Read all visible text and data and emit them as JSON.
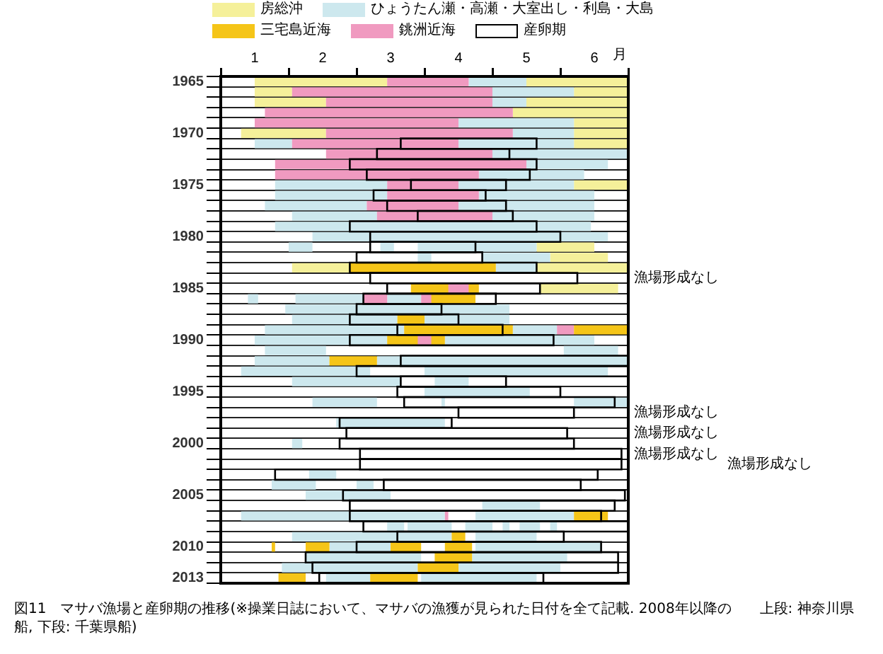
{
  "chart_data": {
    "type": "bar",
    "orientation": "horizontal",
    "xlabel": "月",
    "legend": "top",
    "grid": "y",
    "categories": [
      "1965",
      null,
      null,
      null,
      null,
      "1970",
      null,
      null,
      null,
      null,
      "1975",
      null,
      null,
      null,
      null,
      "1980",
      null,
      null,
      null,
      null,
      "1985",
      null,
      null,
      null,
      null,
      "1990",
      null,
      null,
      null,
      null,
      "1995",
      null,
      null,
      null,
      null,
      "2000",
      null,
      null,
      null,
      null,
      "2005",
      null,
      null,
      null,
      null,
      "2010",
      null,
      null,
      "2013"
    ],
    "xlim": [
      1,
      7
    ],
    "xticks": [
      {
        "value": 1,
        "label": null
      },
      {
        "value": 1.5,
        "label": "1"
      },
      {
        "value": 2,
        "label": null
      },
      {
        "value": 2.5,
        "label": "2"
      },
      {
        "value": 3,
        "label": null
      },
      {
        "value": 3.5,
        "label": "3"
      },
      {
        "value": 4,
        "label": null
      },
      {
        "value": 4.5,
        "label": "4"
      },
      {
        "value": 5,
        "label": null
      },
      {
        "value": 5.5,
        "label": "5"
      },
      {
        "value": 6,
        "label": null
      },
      {
        "value": 6.5,
        "label": "6"
      },
      {
        "value": 7,
        "label": null
      }
    ],
    "series": [
      {
        "name": "房総沖",
        "color": "#f5f09a",
        "values": [
          1.95,
          0.55,
          1.05,
          1.7,
          0.8,
          1.25,
          0.8,
          null,
          null,
          null,
          0.8,
          null,
          null,
          null,
          null,
          null,
          0.85,
          0.85,
          0.85,
          null,
          1.15,
          null,
          null,
          null,
          null,
          null,
          null,
          null,
          null,
          null,
          null,
          null,
          null,
          null,
          null,
          null,
          null,
          null,
          null,
          null,
          null,
          null,
          null,
          null,
          null,
          null,
          null,
          null,
          null
        ],
        "base": [
          1.5,
          1.5,
          1.5,
          5.3,
          6.2,
          1.3,
          6.2,
          null,
          null,
          null,
          6.2,
          null,
          null,
          null,
          null,
          null,
          5.65,
          5.85,
          2.05,
          null,
          5.7,
          null,
          null,
          null,
          null,
          null,
          null,
          null,
          null,
          null,
          null,
          null,
          null,
          null,
          null,
          null,
          null,
          null,
          null,
          null,
          null,
          null,
          null,
          null,
          null,
          null,
          null,
          null,
          null
        ]
      },
      {
        "color": "#f5f09a",
        "values": [
          1.5,
          0.8,
          1.5,
          null,
          null,
          0.8,
          null,
          null,
          null,
          null,
          null,
          null,
          null,
          null,
          null,
          null,
          null,
          null,
          1.35,
          null,
          null,
          null,
          null,
          null,
          null,
          null,
          null,
          null,
          null,
          null,
          null,
          null,
          null,
          null,
          null,
          null,
          null,
          null,
          null,
          null,
          null,
          null,
          null,
          null,
          null,
          null,
          null,
          null,
          null
        ],
        "base": [
          5.5,
          6.2,
          5.5,
          null,
          null,
          6.2,
          null,
          null,
          null,
          null,
          null,
          null,
          null,
          null,
          null,
          null,
          null,
          null,
          5.65,
          null,
          null,
          null,
          null,
          null,
          null,
          null,
          null,
          null,
          null,
          null,
          null,
          null,
          null,
          null,
          null,
          null,
          null,
          null,
          null,
          null,
          null,
          null,
          null,
          null,
          null,
          null,
          null,
          null,
          null
        ]
      },
      {
        "name": "ひょうたん瀬・高瀬・大室出し・利島・大島",
        "color": "#cde8ee",
        "values": [
          0.85,
          1.2,
          0.5,
          null,
          1.7,
          0.9,
          0.55,
          2.0,
          1.2,
          1.55,
          1.65,
          1.65,
          1.5,
          1.25,
          4.65,
          4.35,
          0.35,
          0.2,
          0.6,
          null,
          null,
          0.15,
          3.3,
          1.55,
          2.05,
          1.95,
          0.9,
          1.1,
          1.9,
          1.6,
          1.55,
          0.95,
          null,
          1.6,
          null,
          0.15,
          null,
          null,
          0.4,
          0.65,
          1.25,
          0.85,
          3.0,
          0.25,
          2.35,
          0.9,
          1.7,
          2.0,
          0.65
        ],
        "base": [
          4.65,
          5.0,
          5.0,
          null,
          4.5,
          5.3,
          1.5,
          5.0,
          5.5,
          4.8,
          1.8,
          1.8,
          1.65,
          2.05,
          1.8,
          2.35,
          2.0,
          3.9,
          5.05,
          null,
          null,
          1.4,
          1.95,
          2.05,
          1.65,
          1.5,
          1.65,
          1.5,
          1.3,
          2.05,
          4.0,
          2.35,
          null,
          2.7,
          null,
          2.05,
          null,
          null,
          2.3,
          1.75,
          2.25,
          4.85,
          1.3,
          3.45,
          2.05,
          2.6,
          2.25,
          1.9,
          2.55
        ]
      },
      {
        "color": "#cde8ee",
        "values": [
          null,
          null,
          null,
          null,
          null,
          null,
          1.7,
          null,
          null,
          null,
          1.7,
          1.7,
          2.0,
          1.5,
          null,
          null,
          0.2,
          1.0,
          null,
          null,
          null,
          1.0,
          null,
          1.25,
          0.65,
          2.2,
          0.8,
          3.7,
          2.7,
          0.5,
          null,
          0.05,
          null,
          null,
          null,
          null,
          null,
          null,
          null,
          0.25,
          null,
          null,
          1.45,
          0.65,
          0.9,
          1.85,
          1.4,
          1.5,
          1.7
        ],
        "base": [
          null,
          null,
          null,
          null,
          null,
          null,
          4.5,
          null,
          null,
          null,
          4.5,
          4.8,
          4.5,
          5.0,
          null,
          null,
          3.35,
          4.85,
          null,
          null,
          null,
          2.1,
          null,
          4.0,
          5.3,
          4.3,
          6.05,
          3.3,
          4.0,
          4.15,
          null,
          4.25,
          null,
          null,
          null,
          null,
          null,
          null,
          null,
          3.0,
          null,
          null,
          4.75,
          3.75,
          4.75,
          4.75,
          4.7,
          4.5,
          3.95
        ]
      },
      {
        "color": "#cde8ee",
        "values": [
          null,
          null,
          null,
          null,
          null,
          null,
          null,
          null,
          null,
          null,
          null,
          null,
          null,
          null,
          null,
          null,
          1.75,
          null,
          null,
          null,
          null,
          0.5,
          null,
          null,
          null,
          null,
          null,
          null,
          null,
          null,
          null,
          0.8,
          null,
          null,
          null,
          null,
          null,
          null,
          null,
          null,
          null,
          null,
          null,
          0.4,
          null,
          null,
          null,
          null,
          null
        ],
        "base": [
          null,
          null,
          null,
          null,
          null,
          null,
          null,
          null,
          null,
          null,
          null,
          null,
          null,
          null,
          null,
          null,
          3.9,
          null,
          null,
          null,
          null,
          3.45,
          null,
          null,
          null,
          null,
          null,
          null,
          null,
          null,
          null,
          6.2,
          null,
          null,
          null,
          null,
          null,
          null,
          null,
          null,
          null,
          null,
          null,
          4.6,
          null,
          null,
          null,
          null,
          null
        ]
      },
      {
        "color": "#cde8ee",
        "values": [
          null,
          null,
          null,
          null,
          null,
          null,
          null,
          null,
          null,
          null,
          null,
          null,
          null,
          null,
          null,
          null,
          null,
          null,
          null,
          null,
          null,
          null,
          null,
          null,
          null,
          null,
          null,
          null,
          null,
          null,
          null,
          null,
          null,
          null,
          null,
          null,
          null,
          null,
          null,
          null,
          null,
          null,
          null,
          0.1,
          null,
          null,
          null,
          null,
          null
        ],
        "base": [
          null,
          null,
          null,
          null,
          null,
          null,
          null,
          null,
          null,
          null,
          null,
          null,
          null,
          null,
          null,
          null,
          null,
          null,
          null,
          null,
          null,
          null,
          null,
          null,
          null,
          null,
          null,
          null,
          null,
          null,
          null,
          null,
          null,
          null,
          null,
          null,
          null,
          null,
          null,
          null,
          null,
          null,
          null,
          5.15,
          null,
          null,
          null,
          null,
          null
        ]
      },
      {
        "color": "#cde8ee",
        "values": [
          null,
          null,
          null,
          null,
          null,
          null,
          null,
          null,
          null,
          null,
          null,
          null,
          null,
          null,
          null,
          null,
          null,
          null,
          null,
          null,
          null,
          null,
          null,
          null,
          null,
          null,
          null,
          null,
          null,
          null,
          null,
          null,
          null,
          null,
          null,
          null,
          null,
          null,
          null,
          null,
          null,
          null,
          null,
          0.3,
          null,
          null,
          null,
          null,
          null
        ],
        "base": [
          null,
          null,
          null,
          null,
          null,
          null,
          null,
          null,
          null,
          null,
          null,
          null,
          null,
          null,
          null,
          null,
          null,
          null,
          null,
          null,
          null,
          null,
          null,
          null,
          null,
          null,
          null,
          null,
          null,
          null,
          null,
          null,
          null,
          null,
          null,
          null,
          null,
          null,
          null,
          null,
          null,
          null,
          null,
          5.4,
          null,
          null,
          null,
          null,
          null
        ]
      },
      {
        "color": "#cde8ee",
        "values": [
          null,
          null,
          null,
          null,
          null,
          null,
          null,
          null,
          null,
          null,
          null,
          null,
          null,
          null,
          null,
          null,
          null,
          null,
          null,
          null,
          null,
          null,
          null,
          null,
          null,
          null,
          null,
          null,
          null,
          null,
          null,
          null,
          null,
          null,
          null,
          null,
          null,
          null,
          null,
          null,
          null,
          null,
          null,
          0.1,
          null,
          null,
          null,
          null,
          null
        ],
        "base": [
          null,
          null,
          null,
          null,
          null,
          null,
          null,
          null,
          null,
          null,
          null,
          null,
          null,
          null,
          null,
          null,
          null,
          null,
          null,
          null,
          null,
          null,
          null,
          null,
          null,
          null,
          null,
          null,
          null,
          null,
          null,
          null,
          null,
          null,
          null,
          null,
          null,
          null,
          null,
          null,
          null,
          null,
          null,
          5.85,
          null,
          null,
          null,
          null,
          null
        ]
      },
      {
        "name": "三宅島近海",
        "color": "#f5c518",
        "values": [
          null,
          null,
          null,
          null,
          null,
          null,
          null,
          null,
          null,
          null,
          null,
          null,
          null,
          null,
          null,
          null,
          null,
          null,
          2.15,
          null,
          1.0,
          0.7,
          null,
          0.4,
          1.6,
          0.85,
          null,
          0.7,
          null,
          null,
          null,
          null,
          null,
          null,
          null,
          null,
          null,
          null,
          null,
          null,
          null,
          null,
          0.5,
          null,
          0.2,
          0.05,
          0.55,
          0.6,
          0.4
        ],
        "base": [
          null,
          null,
          null,
          null,
          null,
          null,
          null,
          null,
          null,
          null,
          null,
          null,
          null,
          null,
          null,
          null,
          null,
          null,
          2.9,
          null,
          3.8,
          4.05,
          null,
          3.6,
          3.7,
          3.45,
          null,
          2.6,
          null,
          null,
          null,
          null,
          null,
          null,
          null,
          null,
          null,
          null,
          null,
          null,
          null,
          null,
          6.2,
          null,
          4.4,
          1.75,
          4.15,
          3.9,
          1.85
        ]
      },
      {
        "name": "銚洲近海",
        "color": "#f09ac0",
        "values": [
          1.2,
          2.95,
          2.45,
          3.65,
          3.0,
          2.75,
          2.45,
          2.45,
          3.7,
          3.0,
          1.05,
          1.35,
          1.35,
          1.7,
          null,
          null,
          null,
          null,
          null,
          null,
          0.3,
          0.35,
          null,
          null,
          0.25,
          0.2,
          null,
          null,
          null,
          null,
          null,
          null,
          null,
          null,
          null,
          null,
          null,
          null,
          null,
          null,
          null,
          null,
          0.05,
          null,
          null,
          null,
          null,
          null,
          null
        ],
        "base": [
          3.45,
          2.05,
          2.55,
          1.65,
          1.5,
          2.55,
          2.05,
          2.55,
          1.8,
          1.8,
          3.45,
          3.45,
          3.15,
          3.3,
          null,
          null,
          null,
          null,
          null,
          null,
          4.35,
          3.1,
          null,
          null,
          5.95,
          3.9,
          null,
          null,
          null,
          null,
          null,
          null,
          null,
          null,
          null,
          null,
          null,
          null,
          null,
          null,
          null,
          null,
          4.3,
          null,
          null,
          null,
          null,
          null,
          null
        ]
      },
      {
        "color": "#f09ac0",
        "values": [
          null,
          null,
          null,
          null,
          null,
          null,
          null,
          null,
          null,
          null,
          null,
          null,
          null,
          null,
          null,
          null,
          null,
          null,
          null,
          null,
          null,
          0.15,
          null,
          null,
          null,
          null,
          null,
          null,
          null,
          null,
          null,
          null,
          null,
          null,
          null,
          null,
          null,
          null,
          null,
          null,
          null,
          null,
          null,
          null,
          null,
          null,
          null,
          null,
          null
        ],
        "base": [
          null,
          null,
          null,
          null,
          null,
          null,
          null,
          null,
          null,
          null,
          null,
          null,
          null,
          null,
          null,
          null,
          null,
          null,
          null,
          null,
          null,
          3.95,
          null,
          null,
          null,
          null,
          null,
          null,
          null,
          null,
          null,
          null,
          null,
          null,
          null,
          null,
          null,
          null,
          null,
          null,
          null,
          null,
          null,
          null,
          null,
          null,
          null,
          null,
          null
        ]
      },
      {
        "color": "#f5c518",
        "values": [
          null,
          null,
          null,
          null,
          null,
          null,
          null,
          null,
          null,
          null,
          null,
          null,
          null,
          null,
          null,
          null,
          null,
          null,
          null,
          null,
          null,
          null,
          null,
          null,
          0.8,
          null,
          null,
          null,
          null,
          null,
          null,
          null,
          null,
          null,
          null,
          null,
          null,
          null,
          null,
          null,
          null,
          null,
          null,
          null,
          null,
          0.35,
          null,
          null,
          0.7
        ],
        "base": [
          null,
          null,
          null,
          null,
          null,
          null,
          null,
          null,
          null,
          null,
          null,
          null,
          null,
          null,
          null,
          null,
          null,
          null,
          null,
          null,
          null,
          null,
          null,
          null,
          6.2,
          null,
          null,
          null,
          null,
          null,
          null,
          null,
          null,
          null,
          null,
          null,
          null,
          null,
          null,
          null,
          null,
          null,
          null,
          null,
          null,
          2.25,
          null,
          null,
          3.2
        ]
      },
      {
        "color": "#f5c518",
        "values": [
          null,
          null,
          null,
          null,
          null,
          null,
          null,
          null,
          null,
          null,
          null,
          null,
          null,
          null,
          null,
          null,
          null,
          null,
          null,
          null,
          null,
          null,
          null,
          null,
          null,
          null,
          null,
          null,
          null,
          null,
          null,
          null,
          null,
          null,
          null,
          null,
          null,
          null,
          null,
          null,
          null,
          null,
          null,
          null,
          null,
          0.45,
          null,
          null,
          null
        ],
        "base": [
          null,
          null,
          null,
          null,
          null,
          null,
          null,
          null,
          null,
          null,
          null,
          null,
          null,
          null,
          null,
          null,
          null,
          null,
          null,
          null,
          null,
          null,
          null,
          null,
          null,
          null,
          null,
          null,
          null,
          null,
          null,
          null,
          null,
          null,
          null,
          null,
          null,
          null,
          null,
          null,
          null,
          null,
          null,
          null,
          null,
          3.5,
          null,
          null,
          null
        ]
      },
      {
        "color": "#f5c518",
        "values": [
          null,
          null,
          null,
          null,
          null,
          null,
          null,
          null,
          null,
          null,
          null,
          null,
          null,
          null,
          null,
          null,
          null,
          null,
          null,
          null,
          null,
          null,
          null,
          null,
          null,
          null,
          null,
          null,
          null,
          null,
          null,
          null,
          null,
          null,
          null,
          null,
          null,
          null,
          null,
          null,
          null,
          null,
          null,
          null,
          null,
          0.4,
          null,
          null,
          null
        ],
        "base": [
          null,
          null,
          null,
          null,
          null,
          null,
          null,
          null,
          null,
          null,
          null,
          null,
          null,
          null,
          null,
          null,
          null,
          null,
          null,
          null,
          null,
          null,
          null,
          null,
          null,
          null,
          null,
          null,
          null,
          null,
          null,
          null,
          null,
          null,
          null,
          null,
          null,
          null,
          null,
          null,
          null,
          null,
          null,
          null,
          null,
          4.3,
          null,
          null,
          null
        ]
      },
      {
        "name": "産卵期",
        "color": "#000000",
        "line_style": "solid",
        "values": [
          null,
          null,
          null,
          null,
          null,
          null,
          2.0,
          1.95,
          2.75,
          2.4,
          1.4,
          1.65,
          1.75,
          1.4,
          2.75,
          2.8,
          1.55,
          1.85,
          2.75,
          3.05,
          2.25,
          1.95,
          1.25,
          1.6,
          1.55,
          3.0,
          null,
          3.35,
          4.0,
          1.55,
          2.4,
          3.1,
          1.7,
          1.65,
          3.25,
          3.45,
          3.85,
          3.85,
          4.75,
          2.9,
          4.15,
          3.9,
          3.7,
          3.9,
          2.45,
          3.6,
          4.6,
          4.5,
          3.3
        ],
        "base": [
          null,
          null,
          null,
          null,
          null,
          null,
          3.65,
          3.3,
          2.9,
          3.15,
          3.8,
          3.25,
          3.45,
          3.9,
          2.9,
          3.2,
          3.2,
          3.0,
          2.9,
          3.2,
          3.45,
          3.1,
          3.0,
          2.9,
          3.6,
          2.9,
          null,
          3.65,
          3.0,
          3.65,
          3.6,
          3.7,
          4.5,
          2.75,
          2.85,
          2.75,
          3.05,
          3.05,
          1.8,
          3.4,
          2.8,
          2.9,
          2.9,
          3.1,
          3.6,
          3.0,
          2.25,
          2.35,
          2.45
        ]
      }
    ],
    "annotations": [
      "漁場形成なし",
      "漁場形成なし",
      "漁場形成なし",
      "漁場形成なし",
      "漁場形成なし",
      "図11　マサバ漁場と産卵期の推移(※操業日誌において、マサバの漁獲が見られた日付を全て記載. 2008年以降の　　上段: 神奈川県船, 下段: 千葉県船)"
    ]
  }
}
